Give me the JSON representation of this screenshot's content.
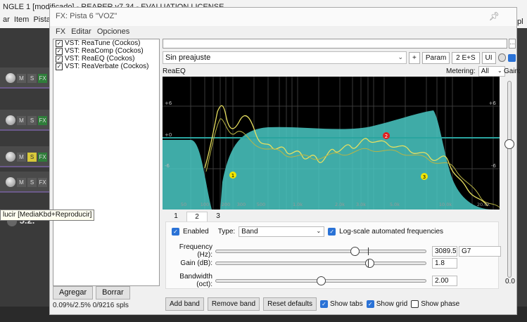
{
  "background": {
    "title": "NGLE 1 [modificado] - REAPER v7.34 - EVALUATION LICENSE",
    "menu": [
      "ar",
      "Item",
      "Pista"
    ],
    "right_edge_text": "pl",
    "tooltip": "lucir [MediaKbd+Reproducir]",
    "track_version": "5.2."
  },
  "fx_window": {
    "title": "FX: Pista 6 \"VOZ\"",
    "menu": [
      "FX",
      "Editar",
      "Opciones"
    ],
    "fx_items": [
      {
        "label": "VST: ReaTune (Cockos)",
        "checked": true
      },
      {
        "label": "VST: ReaComp (Cockos)",
        "checked": true
      },
      {
        "label": "VST: ReaEQ (Cockos)",
        "checked": true
      },
      {
        "label": "VST: ReaVerbate (Cockos)",
        "checked": true
      }
    ],
    "add_button": "Agregar",
    "remove_button": "Borrar",
    "cpu_status": "0.09%/2.5% 0/9216 spls"
  },
  "plugin": {
    "preset": "Sin preajuste",
    "plus_button": "+",
    "param_button": "Param",
    "io_button": "2 E+S",
    "ui_button": "UI",
    "name": "ReaEQ",
    "metering_label": "Metering:",
    "metering_value": "All",
    "gain_label": "Gain:",
    "gain_value": "0.0",
    "gain_level_db": 0.0
  },
  "graph": {
    "db_labels": [
      "+6",
      "+0",
      "-6"
    ],
    "freq_labels": [
      "50",
      "100",
      "200",
      "300",
      "500",
      "1.0k",
      "2.0k",
      "3.0k",
      "5.0k",
      "10.0k",
      "20.0k"
    ],
    "bands": [
      {
        "number": "1",
        "color": "#f2e600"
      },
      {
        "number": "2",
        "color": "#e02020"
      },
      {
        "number": "3",
        "color": "#f2e600"
      }
    ]
  },
  "tabs": [
    "1",
    "2",
    "3"
  ],
  "active_tab": "2",
  "band": {
    "enabled_label": "Enabled",
    "type_label": "Type:",
    "type_value": "Band",
    "log_scale_label": "Log-scale automated frequencies",
    "frequency_label": "Frequency (Hz):",
    "frequency_value": "3089.5",
    "frequency_note": "G7",
    "frequency_level": 0.66,
    "gain_label": "Gain (dB):",
    "gain_value": "1.8",
    "gain_level": 0.73,
    "bandwidth_label": "Bandwidth (oct):",
    "bandwidth_value": "2.00",
    "bandwidth_level": 0.5
  },
  "bottom": {
    "add_band": "Add band",
    "remove_band": "Remove band",
    "reset_defaults": "Reset defaults",
    "show_tabs": "Show tabs",
    "show_grid": "Show grid",
    "show_phase": "Show phase"
  }
}
